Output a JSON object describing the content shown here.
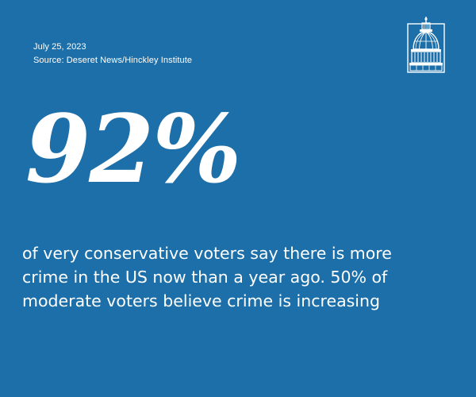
{
  "header": {
    "date": "July 25, 2023",
    "source": "Source: Deseret News/Hinckley Institute"
  },
  "logo": {
    "icon": "capitol-dome-icon"
  },
  "stat": {
    "value": "92%"
  },
  "description": {
    "lines": [
      "of very conservative voters say there is more",
      "crime in the US now than a year ago. 50% of",
      "moderate voters believe crime is increasing"
    ]
  },
  "colors": {
    "background": "#1c6fa8",
    "text": "#ffffff"
  }
}
